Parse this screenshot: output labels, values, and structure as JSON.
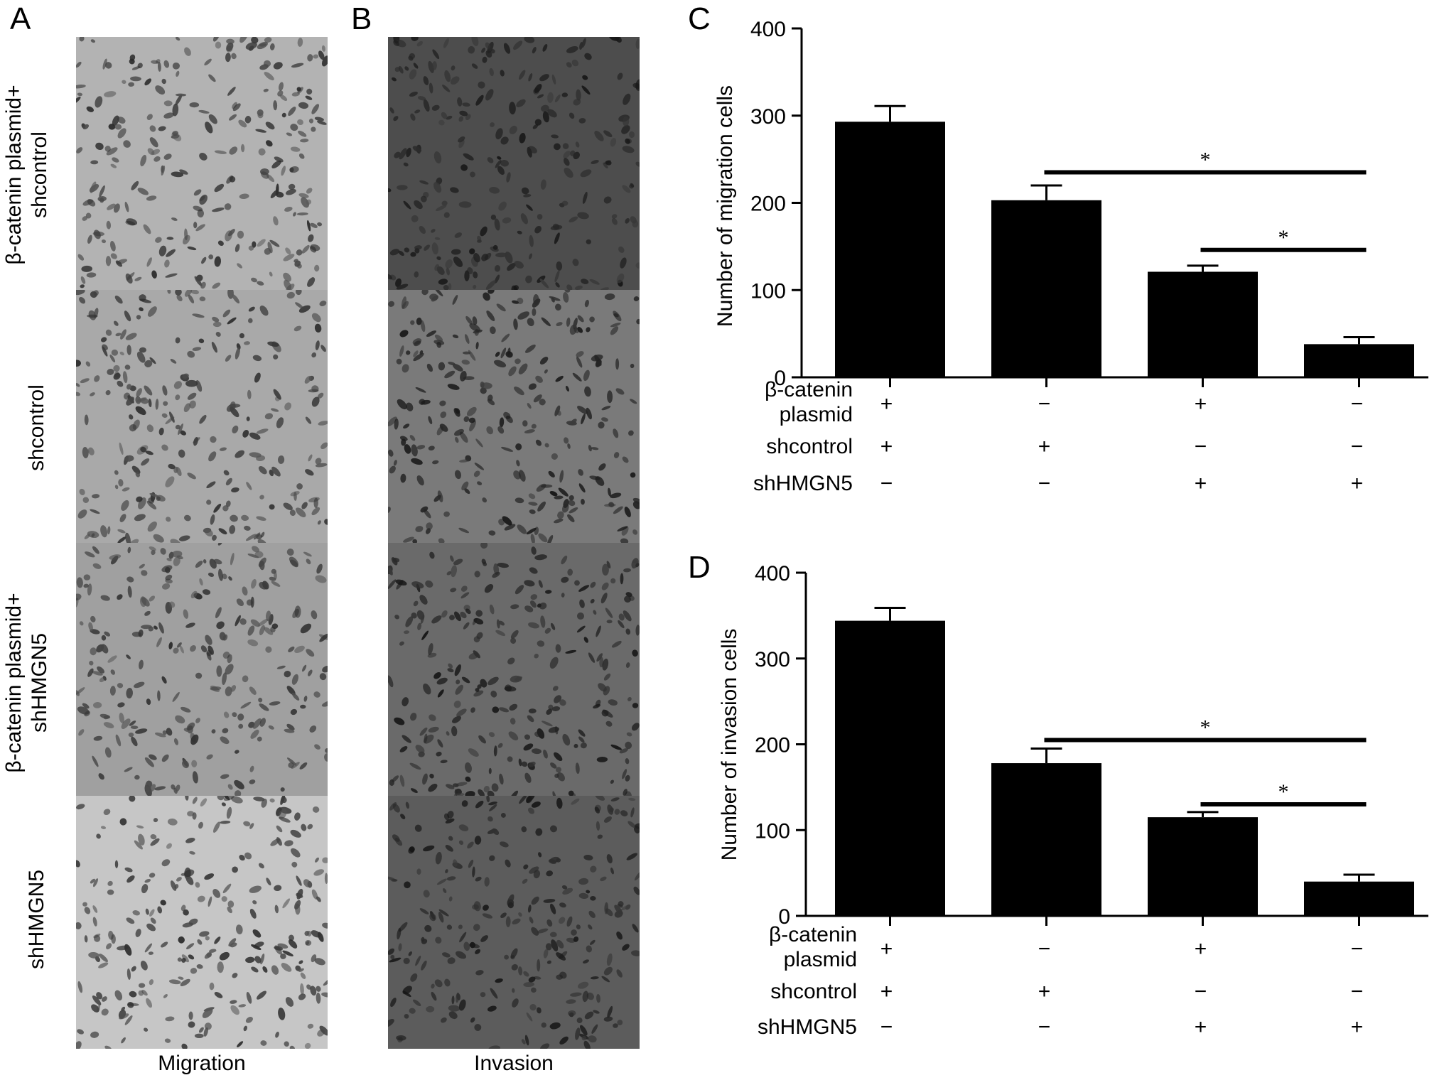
{
  "panels": {
    "a": {
      "letter": "A",
      "caption": "Migration"
    },
    "b": {
      "letter": "B",
      "caption": "Invasion"
    },
    "c": {
      "letter": "C"
    },
    "d": {
      "letter": "D"
    }
  },
  "row_labels": [
    {
      "line1": "β-catenin plasmid+",
      "line2": "shcontrol"
    },
    {
      "line1": "shcontrol",
      "line2": ""
    },
    {
      "line1": "β-catenin plasmid+",
      "line2": "shHMGN5"
    },
    {
      "line1": "shHMGN5",
      "line2": ""
    }
  ],
  "tile_tones": {
    "migration": [
      "#b3b3b3",
      "#a9a9a9",
      "#a0a0a0",
      "#c6c6c6"
    ],
    "invasion": [
      "#4d4d4d",
      "#7a7a7a",
      "#6a6a6a",
      "#5c5c5c"
    ]
  },
  "chart_data": [
    {
      "type": "bar",
      "panel": "C",
      "ylabel": "Number of migration cells",
      "ylim": [
        0,
        400
      ],
      "yticks": [
        0,
        100,
        200,
        300,
        400
      ],
      "categories": [
        "1",
        "2",
        "3",
        "4"
      ],
      "values": [
        293,
        203,
        121,
        38
      ],
      "errors": [
        18,
        17,
        7,
        8
      ],
      "bar_color": "#000000",
      "condition_rows": [
        {
          "label_lines": [
            "β-catenin",
            "plasmid"
          ],
          "signs": [
            "+",
            "−",
            "+",
            "−"
          ]
        },
        {
          "label_lines": [
            "shcontrol"
          ],
          "signs": [
            "+",
            "+",
            "−",
            "−"
          ]
        },
        {
          "label_lines": [
            "shHMGN5"
          ],
          "signs": [
            "−",
            "−",
            "+",
            "+"
          ]
        }
      ],
      "significance": [
        {
          "from": 1,
          "to": 3,
          "label": "*",
          "y": 235
        },
        {
          "from": 2,
          "to": 3,
          "label": "*",
          "y": 146
        }
      ]
    },
    {
      "type": "bar",
      "panel": "D",
      "ylabel": "Number of invasion cells",
      "ylim": [
        0,
        400
      ],
      "yticks": [
        0,
        100,
        200,
        300,
        400
      ],
      "categories": [
        "1",
        "2",
        "3",
        "4"
      ],
      "values": [
        344,
        178,
        115,
        40
      ],
      "errors": [
        15,
        17,
        6,
        8
      ],
      "bar_color": "#000000",
      "condition_rows": [
        {
          "label_lines": [
            "β-catenin",
            "plasmid"
          ],
          "signs": [
            "+",
            "−",
            "+",
            "−"
          ]
        },
        {
          "label_lines": [
            "shcontrol"
          ],
          "signs": [
            "+",
            "+",
            "−",
            "−"
          ]
        },
        {
          "label_lines": [
            "shHMGN5"
          ],
          "signs": [
            "−",
            "−",
            "+",
            "+"
          ]
        }
      ],
      "significance": [
        {
          "from": 1,
          "to": 3,
          "label": "*",
          "y": 205
        },
        {
          "from": 2,
          "to": 3,
          "label": "*",
          "y": 130
        }
      ]
    }
  ]
}
